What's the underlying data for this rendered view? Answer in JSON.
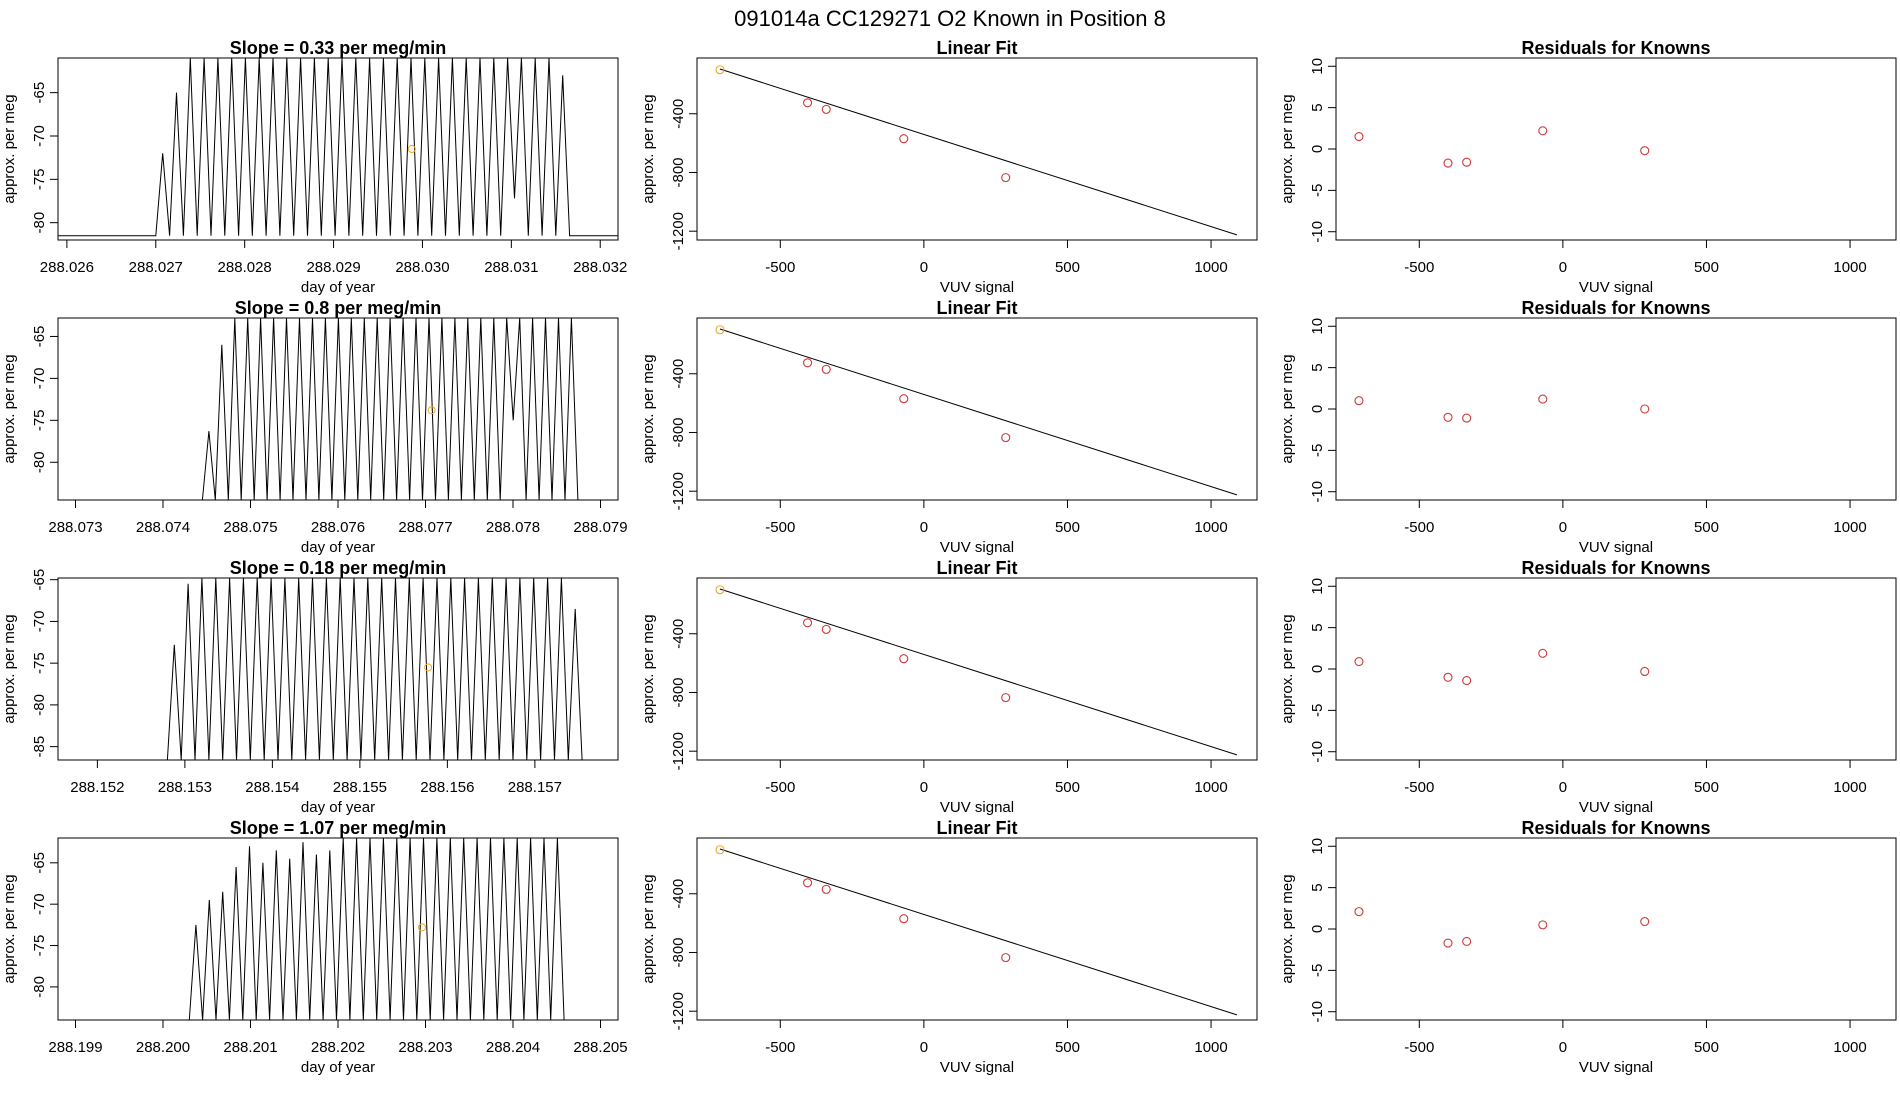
{
  "page": {
    "title": "091014a      CC129271    O2 Known in Position  8"
  },
  "styles": {
    "trace_color": "#000000",
    "point_color_fit": "#cd3a3a",
    "point_color_highlight": "#f5a623",
    "fit_line_color": "#000000",
    "frame_color": "#000000"
  },
  "chart_data": [
    {
      "type": "line",
      "row": 0,
      "title": "Slope =  0.33  per meg/min",
      "xlabel": "day of year",
      "ylabel": "approx. per meg",
      "xlim": [
        288.0259,
        288.0322
      ],
      "ylim": [
        -82,
        -61
      ],
      "xticks": [
        "288.026",
        "288.027",
        "288.028",
        "288.029",
        "288.030",
        "288.031",
        "288.032"
      ],
      "yticks": [
        -65,
        -70,
        -75,
        -80
      ],
      "baseline": -81.5,
      "peak_clip": -61,
      "x_start": 288.027,
      "peak_period": 0.0001552,
      "peak_count": 30,
      "dips": [
        {
          "after": 25,
          "value": -77.2
        }
      ],
      "peaks_first": [
        -72,
        -65
      ],
      "peaks_last": [
        -63
      ],
      "marker": {
        "x": 288.02988,
        "y": -71.5
      }
    },
    {
      "type": "line",
      "row": 1,
      "title": "Slope =  0.8  per meg/min",
      "xlabel": "day of year",
      "ylabel": "approx. per meg",
      "xlim": [
        288.0728,
        288.0792
      ],
      "ylim": [
        -84.5,
        -62.8
      ],
      "xticks": [
        "288.073",
        "288.074",
        "288.075",
        "288.076",
        "288.077",
        "288.078",
        "288.079"
      ],
      "yticks": [
        -65,
        -70,
        -75,
        -80
      ],
      "baseline": -84.5,
      "peak_clip": -62.8,
      "x_start": 288.07445,
      "peak_period": 0.000148,
      "peak_count": 29,
      "dips": [
        {
          "after": 23,
          "value": -75
        }
      ],
      "peaks_first": [
        -76.3,
        -66
      ],
      "peaks_last": [],
      "marker": {
        "x": 288.07707,
        "y": -73.8
      }
    },
    {
      "type": "line",
      "row": 2,
      "title": "Slope =  0.18  per meg/min",
      "xlabel": "day of year",
      "ylabel": "approx. per meg",
      "xlim": [
        288.15155,
        288.15795
      ],
      "ylim": [
        -86.6,
        -64.8
      ],
      "xticks": [
        "288.152",
        "288.153",
        "288.154",
        "288.155",
        "288.156",
        "288.157"
      ],
      "yticks": [
        -65,
        -70,
        -75,
        -80,
        -85
      ],
      "baseline": -86.6,
      "peak_clip": -64.8,
      "x_start": 288.1528,
      "peak_period": 0.000158,
      "peak_count": 30,
      "dips": [],
      "peaks_first": [
        -72.8,
        -65.5
      ],
      "peaks_last": [
        -68.5
      ],
      "marker": {
        "x": 288.15578,
        "y": -75.5
      }
    },
    {
      "type": "line",
      "row": 3,
      "title": "Slope =  1.07  per meg/min",
      "xlabel": "day of year",
      "ylabel": "approx. per meg",
      "xlim": [
        288.1988,
        288.2052
      ],
      "ylim": [
        -84,
        -62
      ],
      "xticks": [
        "288.199",
        "288.200",
        "288.201",
        "288.202",
        "288.203",
        "288.204",
        "288.205"
      ],
      "yticks": [
        -65,
        -70,
        -75,
        -80
      ],
      "baseline": -84,
      "peak_clip": -62,
      "x_start": 288.2003,
      "peak_period": 0.000153,
      "peak_count": 28,
      "dips": [],
      "peaks_first": [
        -72.5,
        -69.5,
        -68.5,
        -65.5,
        -63,
        -65,
        -63.5,
        -64.5,
        -62.5,
        -64,
        -63.5
      ],
      "peaks_last": [],
      "marker": {
        "x": 288.20296,
        "y": -72.8
      }
    },
    {
      "type": "scatter",
      "row": 0,
      "title": "Linear Fit",
      "xlabel": "VUV signal",
      "ylabel": "approx. per meg",
      "xlim": [
        -790,
        1160
      ],
      "ylim": [
        -1260,
        -20
      ],
      "xticks": [
        -500,
        0,
        500,
        1000
      ],
      "yticks": [
        -400,
        -800,
        -1200
      ],
      "points": [
        {
          "x": -710,
          "y": -100,
          "highlight": true
        },
        {
          "x": -405,
          "y": -325,
          "highlight": false
        },
        {
          "x": -340,
          "y": -370,
          "highlight": false
        },
        {
          "x": -70,
          "y": -570,
          "highlight": false
        },
        {
          "x": 285,
          "y": -835,
          "highlight": false
        }
      ],
      "fit_line": {
        "x": [
          -710,
          1090
        ],
        "y": [
          -95,
          -1225
        ]
      }
    },
    {
      "type": "scatter",
      "row": 0,
      "title": "Residuals for Knowns",
      "xlabel": "VUV signal",
      "ylabel": "approx. per meg",
      "xlim": [
        -790,
        1160
      ],
      "ylim": [
        -11,
        11
      ],
      "xticks": [
        -500,
        0,
        500,
        1000
      ],
      "yticks": [
        10,
        5,
        0,
        -5,
        -10
      ],
      "points": [
        {
          "x": -710,
          "y": 1.5
        },
        {
          "x": -400,
          "y": -1.7
        },
        {
          "x": -335,
          "y": -1.6
        },
        {
          "x": -70,
          "y": 2.2
        },
        {
          "x": 285,
          "y": -0.2
        }
      ]
    },
    {
      "type": "scatter",
      "row": 1,
      "title": "Linear Fit",
      "xlabel": "VUV signal",
      "ylabel": "approx. per meg",
      "xlim": [
        -790,
        1160
      ],
      "ylim": [
        -1260,
        -20
      ],
      "xticks": [
        -500,
        0,
        500,
        1000
      ],
      "yticks": [
        -400,
        -800,
        -1200
      ],
      "points": [
        {
          "x": -710,
          "y": -100,
          "highlight": true
        },
        {
          "x": -405,
          "y": -325,
          "highlight": false
        },
        {
          "x": -340,
          "y": -370,
          "highlight": false
        },
        {
          "x": -70,
          "y": -570,
          "highlight": false
        },
        {
          "x": 285,
          "y": -835,
          "highlight": false
        }
      ],
      "fit_line": {
        "x": [
          -710,
          1090
        ],
        "y": [
          -95,
          -1225
        ]
      }
    },
    {
      "type": "scatter",
      "row": 1,
      "title": "Residuals for Knowns",
      "xlabel": "VUV signal",
      "ylabel": "approx. per meg",
      "xlim": [
        -790,
        1160
      ],
      "ylim": [
        -11,
        11
      ],
      "xticks": [
        -500,
        0,
        500,
        1000
      ],
      "yticks": [
        10,
        5,
        0,
        -5,
        -10
      ],
      "points": [
        {
          "x": -710,
          "y": 1.0
        },
        {
          "x": -400,
          "y": -1.0
        },
        {
          "x": -335,
          "y": -1.1
        },
        {
          "x": -70,
          "y": 1.2
        },
        {
          "x": 285,
          "y": 0.0
        }
      ]
    },
    {
      "type": "scatter",
      "row": 2,
      "title": "Linear Fit",
      "xlabel": "VUV signal",
      "ylabel": "approx. per meg",
      "xlim": [
        -790,
        1160
      ],
      "ylim": [
        -1260,
        -20
      ],
      "xticks": [
        -500,
        0,
        500,
        1000
      ],
      "yticks": [
        -400,
        -800,
        -1200
      ],
      "points": [
        {
          "x": -710,
          "y": -100,
          "highlight": true
        },
        {
          "x": -405,
          "y": -325,
          "highlight": false
        },
        {
          "x": -340,
          "y": -370,
          "highlight": false
        },
        {
          "x": -70,
          "y": -570,
          "highlight": false
        },
        {
          "x": 285,
          "y": -835,
          "highlight": false
        }
      ],
      "fit_line": {
        "x": [
          -710,
          1090
        ],
        "y": [
          -95,
          -1225
        ]
      }
    },
    {
      "type": "scatter",
      "row": 2,
      "title": "Residuals for Knowns",
      "xlabel": "VUV signal",
      "ylabel": "approx. per meg",
      "xlim": [
        -790,
        1160
      ],
      "ylim": [
        -11,
        11
      ],
      "xticks": [
        -500,
        0,
        500,
        1000
      ],
      "yticks": [
        10,
        5,
        0,
        -5,
        -10
      ],
      "points": [
        {
          "x": -710,
          "y": 0.9
        },
        {
          "x": -400,
          "y": -1.0
        },
        {
          "x": -335,
          "y": -1.4
        },
        {
          "x": -70,
          "y": 1.9
        },
        {
          "x": 285,
          "y": -0.3
        }
      ]
    },
    {
      "type": "scatter",
      "row": 3,
      "title": "Linear Fit",
      "xlabel": "VUV signal",
      "ylabel": "approx. per meg",
      "xlim": [
        -790,
        1160
      ],
      "ylim": [
        -1260,
        -20
      ],
      "xticks": [
        -500,
        0,
        500,
        1000
      ],
      "yticks": [
        -400,
        -800,
        -1200
      ],
      "points": [
        {
          "x": -710,
          "y": -100,
          "highlight": true
        },
        {
          "x": -405,
          "y": -325,
          "highlight": false
        },
        {
          "x": -340,
          "y": -370,
          "highlight": false
        },
        {
          "x": -70,
          "y": -570,
          "highlight": false
        },
        {
          "x": 285,
          "y": -835,
          "highlight": false
        }
      ],
      "fit_line": {
        "x": [
          -710,
          1090
        ],
        "y": [
          -95,
          -1225
        ]
      }
    },
    {
      "type": "scatter",
      "row": 3,
      "title": "Residuals for Knowns",
      "xlabel": "VUV signal",
      "ylabel": "approx. per meg",
      "xlim": [
        -790,
        1160
      ],
      "ylim": [
        -11,
        11
      ],
      "xticks": [
        -500,
        0,
        500,
        1000
      ],
      "yticks": [
        10,
        5,
        0,
        -5,
        -10
      ],
      "points": [
        {
          "x": -710,
          "y": 2.1
        },
        {
          "x": -400,
          "y": -1.7
        },
        {
          "x": -335,
          "y": -1.5
        },
        {
          "x": -70,
          "y": 0.5
        },
        {
          "x": 285,
          "y": 0.9
        }
      ]
    }
  ]
}
